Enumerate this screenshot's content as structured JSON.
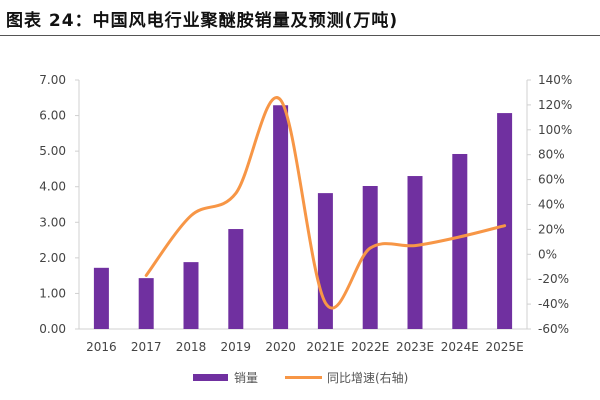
{
  "title": "图表 24：中国风电行业聚醚胺销量及预测(万吨)",
  "chart_data": {
    "type": "bar+line",
    "title": "图表 24：中国风电行业聚醚胺销量及预测(万吨)",
    "categories": [
      "2016",
      "2017",
      "2018",
      "2019",
      "2020",
      "2021E",
      "2022E",
      "2023E",
      "2024E",
      "2025E"
    ],
    "series": [
      {
        "name": "销量",
        "type": "bar",
        "axis": "left",
        "color": "#7030A0",
        "values": [
          1.72,
          1.43,
          1.88,
          2.81,
          6.29,
          3.82,
          4.02,
          4.3,
          4.92,
          6.07
        ]
      },
      {
        "name": "同比增速(右轴)",
        "type": "line",
        "axis": "right",
        "color": "#F79646",
        "values": [
          null,
          -17,
          31,
          49,
          124,
          -39,
          5,
          7,
          14,
          23
        ]
      }
    ],
    "left_axis": {
      "ylim": [
        0,
        7
      ],
      "ticks": [
        "0.00",
        "1.00",
        "2.00",
        "3.00",
        "4.00",
        "5.00",
        "6.00",
        "7.00"
      ]
    },
    "right_axis": {
      "ylim": [
        -60,
        140
      ],
      "ticks": [
        "-60%",
        "-40%",
        "-20%",
        "0%",
        "20%",
        "40%",
        "60%",
        "80%",
        "100%",
        "120%",
        "140%"
      ]
    },
    "grid": false,
    "legend": "bottom"
  }
}
